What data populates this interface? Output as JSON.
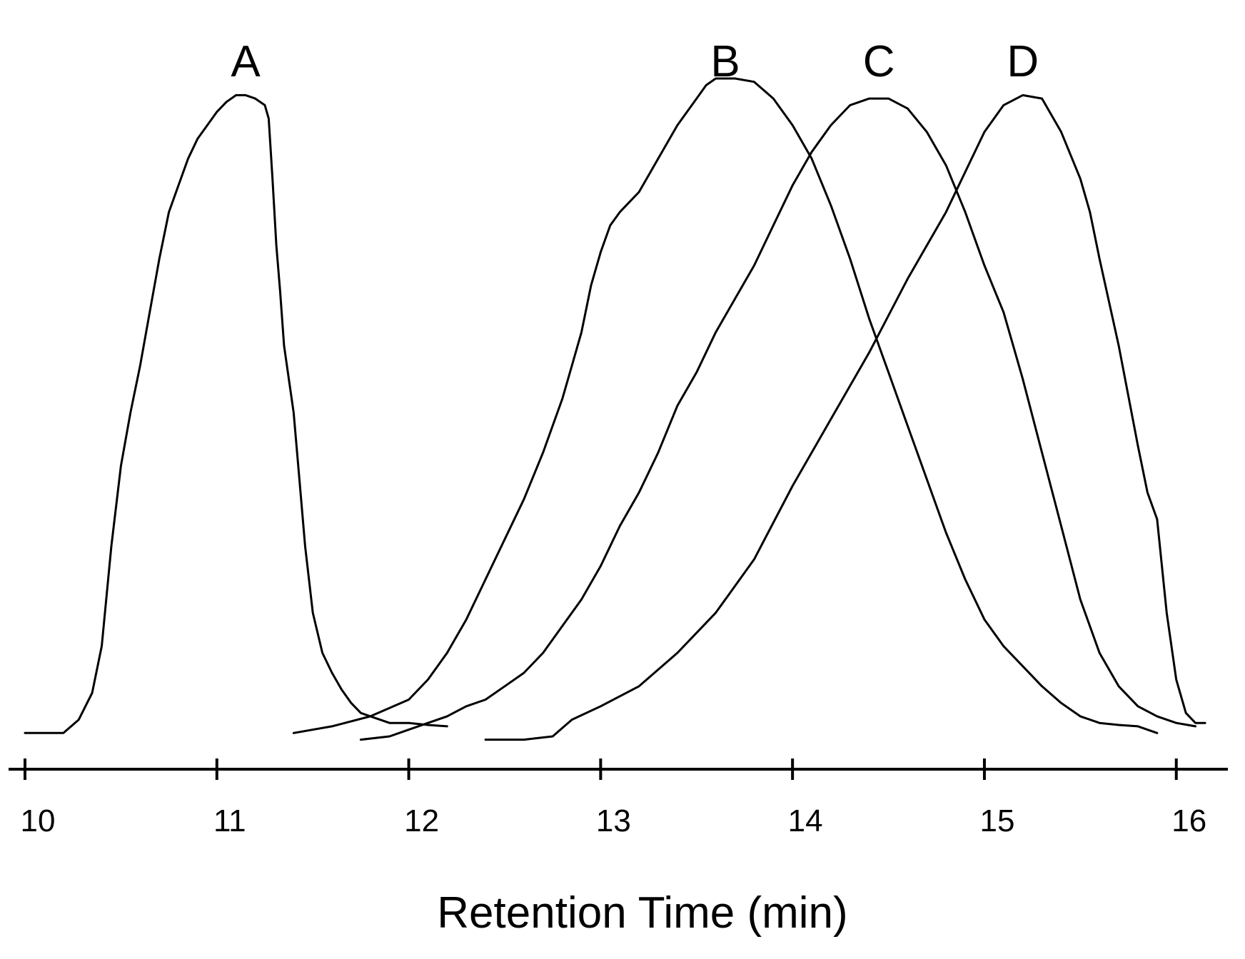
{
  "chart_data": {
    "type": "line",
    "title": "",
    "xlabel": "Retention Time (min)",
    "ylabel": "",
    "xlim": [
      10,
      16.15
    ],
    "ylim": [
      0,
      1.0
    ],
    "x_ticks": [
      10,
      11,
      12,
      13,
      14,
      15,
      16
    ],
    "x_tick_labels": [
      "10",
      "11",
      "12",
      "13",
      "14",
      "15",
      "16"
    ],
    "grid": false,
    "series": [
      {
        "name": "A",
        "label_x": 11.15,
        "points": [
          [
            10.0,
            0.02
          ],
          [
            10.2,
            0.02
          ],
          [
            10.28,
            0.04
          ],
          [
            10.35,
            0.08
          ],
          [
            10.4,
            0.15
          ],
          [
            10.45,
            0.3
          ],
          [
            10.5,
            0.42
          ],
          [
            10.55,
            0.5
          ],
          [
            10.6,
            0.57
          ],
          [
            10.65,
            0.65
          ],
          [
            10.7,
            0.73
          ],
          [
            10.75,
            0.8
          ],
          [
            10.8,
            0.84
          ],
          [
            10.85,
            0.88
          ],
          [
            10.9,
            0.91
          ],
          [
            10.95,
            0.93
          ],
          [
            11.0,
            0.95
          ],
          [
            11.05,
            0.965
          ],
          [
            11.1,
            0.975
          ],
          [
            11.15,
            0.975
          ],
          [
            11.2,
            0.97
          ],
          [
            11.25,
            0.96
          ],
          [
            11.27,
            0.94
          ],
          [
            11.29,
            0.85
          ],
          [
            11.31,
            0.75
          ],
          [
            11.33,
            0.68
          ],
          [
            11.35,
            0.6
          ],
          [
            11.4,
            0.5
          ],
          [
            11.43,
            0.4
          ],
          [
            11.46,
            0.3
          ],
          [
            11.5,
            0.2
          ],
          [
            11.55,
            0.14
          ],
          [
            11.6,
            0.11
          ],
          [
            11.65,
            0.085
          ],
          [
            11.7,
            0.065
          ],
          [
            11.75,
            0.05
          ],
          [
            11.8,
            0.045
          ],
          [
            11.85,
            0.04
          ],
          [
            11.9,
            0.035
          ],
          [
            12.0,
            0.035
          ],
          [
            12.1,
            0.032
          ],
          [
            12.2,
            0.03
          ]
        ]
      },
      {
        "name": "B",
        "label_x": 13.65,
        "points": [
          [
            11.4,
            0.02
          ],
          [
            11.6,
            0.03
          ],
          [
            11.8,
            0.045
          ],
          [
            12.0,
            0.07
          ],
          [
            12.1,
            0.1
          ],
          [
            12.2,
            0.14
          ],
          [
            12.3,
            0.19
          ],
          [
            12.4,
            0.25
          ],
          [
            12.5,
            0.31
          ],
          [
            12.6,
            0.37
          ],
          [
            12.7,
            0.44
          ],
          [
            12.8,
            0.52
          ],
          [
            12.85,
            0.57
          ],
          [
            12.9,
            0.62
          ],
          [
            12.95,
            0.69
          ],
          [
            13.0,
            0.74
          ],
          [
            13.05,
            0.78
          ],
          [
            13.1,
            0.8
          ],
          [
            13.2,
            0.83
          ],
          [
            13.3,
            0.88
          ],
          [
            13.4,
            0.93
          ],
          [
            13.5,
            0.97
          ],
          [
            13.55,
            0.99
          ],
          [
            13.6,
            1.0
          ],
          [
            13.7,
            1.0
          ],
          [
            13.8,
            0.995
          ],
          [
            13.9,
            0.97
          ],
          [
            14.0,
            0.93
          ],
          [
            14.1,
            0.88
          ],
          [
            14.2,
            0.81
          ],
          [
            14.3,
            0.73
          ],
          [
            14.4,
            0.64
          ],
          [
            14.5,
            0.56
          ],
          [
            14.6,
            0.48
          ],
          [
            14.7,
            0.4
          ],
          [
            14.8,
            0.32
          ],
          [
            14.9,
            0.25
          ],
          [
            15.0,
            0.19
          ],
          [
            15.1,
            0.15
          ],
          [
            15.2,
            0.12
          ],
          [
            15.3,
            0.09
          ],
          [
            15.4,
            0.065
          ],
          [
            15.5,
            0.045
          ],
          [
            15.6,
            0.035
          ],
          [
            15.7,
            0.032
          ],
          [
            15.8,
            0.03
          ],
          [
            15.9,
            0.02
          ]
        ]
      },
      {
        "name": "C",
        "label_x": 14.45,
        "points": [
          [
            11.75,
            0.01
          ],
          [
            11.9,
            0.015
          ],
          [
            12.0,
            0.025
          ],
          [
            12.1,
            0.035
          ],
          [
            12.2,
            0.045
          ],
          [
            12.3,
            0.06
          ],
          [
            12.4,
            0.07
          ],
          [
            12.5,
            0.09
          ],
          [
            12.6,
            0.11
          ],
          [
            12.7,
            0.14
          ],
          [
            12.8,
            0.18
          ],
          [
            12.9,
            0.22
          ],
          [
            13.0,
            0.27
          ],
          [
            13.1,
            0.33
          ],
          [
            13.2,
            0.38
          ],
          [
            13.3,
            0.44
          ],
          [
            13.4,
            0.51
          ],
          [
            13.5,
            0.56
          ],
          [
            13.6,
            0.62
          ],
          [
            13.7,
            0.67
          ],
          [
            13.8,
            0.72
          ],
          [
            13.9,
            0.78
          ],
          [
            14.0,
            0.84
          ],
          [
            14.1,
            0.89
          ],
          [
            14.2,
            0.93
          ],
          [
            14.3,
            0.96
          ],
          [
            14.4,
            0.97
          ],
          [
            14.5,
            0.97
          ],
          [
            14.6,
            0.955
          ],
          [
            14.7,
            0.92
          ],
          [
            14.8,
            0.87
          ],
          [
            14.9,
            0.8
          ],
          [
            15.0,
            0.72
          ],
          [
            15.1,
            0.65
          ],
          [
            15.15,
            0.6
          ],
          [
            15.2,
            0.55
          ],
          [
            15.3,
            0.44
          ],
          [
            15.4,
            0.33
          ],
          [
            15.5,
            0.22
          ],
          [
            15.6,
            0.14
          ],
          [
            15.7,
            0.09
          ],
          [
            15.8,
            0.06
          ],
          [
            15.9,
            0.045
          ],
          [
            16.0,
            0.035
          ],
          [
            16.1,
            0.03
          ]
        ]
      },
      {
        "name": "D",
        "label_x": 15.2,
        "points": [
          [
            12.4,
            0.01
          ],
          [
            12.6,
            0.01
          ],
          [
            12.75,
            0.015
          ],
          [
            12.85,
            0.04
          ],
          [
            13.0,
            0.06
          ],
          [
            13.2,
            0.09
          ],
          [
            13.4,
            0.14
          ],
          [
            13.6,
            0.2
          ],
          [
            13.8,
            0.28
          ],
          [
            14.0,
            0.39
          ],
          [
            14.2,
            0.49
          ],
          [
            14.4,
            0.59
          ],
          [
            14.6,
            0.7
          ],
          [
            14.8,
            0.8
          ],
          [
            14.9,
            0.86
          ],
          [
            15.0,
            0.92
          ],
          [
            15.1,
            0.96
          ],
          [
            15.2,
            0.975
          ],
          [
            15.3,
            0.97
          ],
          [
            15.4,
            0.92
          ],
          [
            15.5,
            0.85
          ],
          [
            15.55,
            0.8
          ],
          [
            15.6,
            0.73
          ],
          [
            15.7,
            0.6
          ],
          [
            15.8,
            0.45
          ],
          [
            15.85,
            0.38
          ],
          [
            15.9,
            0.34
          ],
          [
            15.95,
            0.2
          ],
          [
            16.0,
            0.1
          ],
          [
            16.05,
            0.05
          ],
          [
            16.1,
            0.035
          ],
          [
            16.15,
            0.035
          ]
        ]
      }
    ]
  }
}
